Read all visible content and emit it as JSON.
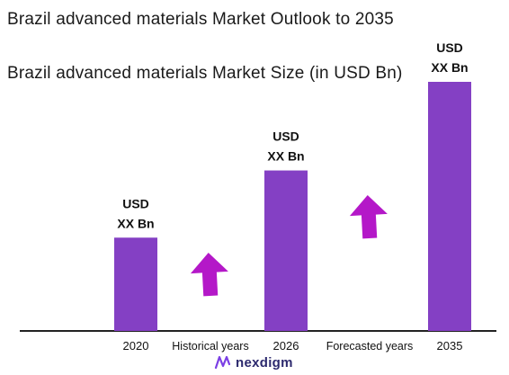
{
  "title": "Brazil advanced materials Market Outlook to 2035",
  "subtitle": "Brazil advanced materials Market Size (in USD Bn)",
  "colors": {
    "bar": "#8440C4",
    "arrow": "#B418C8",
    "axis": "#222222"
  },
  "chart_data": {
    "type": "bar",
    "categories": [
      "2020",
      "2026",
      "2035"
    ],
    "values": [
      1,
      1.72,
      2.67
    ],
    "data_labels": [
      {
        "line1": "USD",
        "line2": "XX Bn"
      },
      {
        "line1": "USD",
        "line2": "XX Bn"
      },
      {
        "line1": "USD",
        "line2": "XX Bn"
      }
    ],
    "period_labels": [
      "Historical years",
      "Forecasted years"
    ],
    "ylim": [
      0,
      2.67
    ],
    "grid": false,
    "legend": "none"
  },
  "logo": {
    "text": "nexdigm",
    "icon": "nexdigm-logo-icon"
  }
}
